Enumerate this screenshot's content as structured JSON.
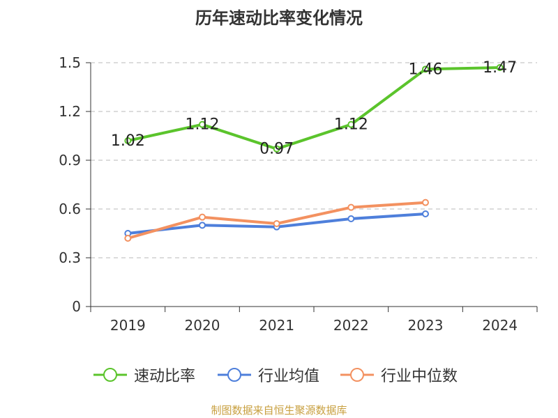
{
  "chart_data": {
    "type": "line",
    "title": "历年速动比率变化情况",
    "categories": [
      "2019",
      "2020",
      "2021",
      "2022",
      "2023",
      "2024"
    ],
    "ylim": [
      0,
      1.5
    ],
    "yticks": [
      "0",
      "0.3",
      "0.6",
      "0.9",
      "1.2",
      "1.5"
    ],
    "ytick_values": [
      0,
      0.3,
      0.6,
      0.9,
      1.2,
      1.5
    ],
    "grid": true,
    "legend_position": "bottom",
    "series": [
      {
        "name": "速动比率",
        "color": "#5bc42c",
        "values": [
          1.02,
          1.12,
          0.97,
          1.12,
          1.46,
          1.47
        ],
        "show_labels": true,
        "labels": [
          "1.02",
          "1.12",
          "0.97",
          "1.12",
          "1.46",
          "1.47"
        ]
      },
      {
        "name": "行业均值",
        "color": "#4e7fdb",
        "values": [
          0.45,
          0.5,
          0.49,
          0.54,
          0.57,
          null
        ],
        "show_labels": false
      },
      {
        "name": "行业中位数",
        "color": "#f39160",
        "values": [
          0.42,
          0.55,
          0.51,
          0.61,
          0.64,
          null
        ],
        "show_labels": false
      }
    ],
    "source_note": "制图数据来自恒生聚源数据库"
  }
}
